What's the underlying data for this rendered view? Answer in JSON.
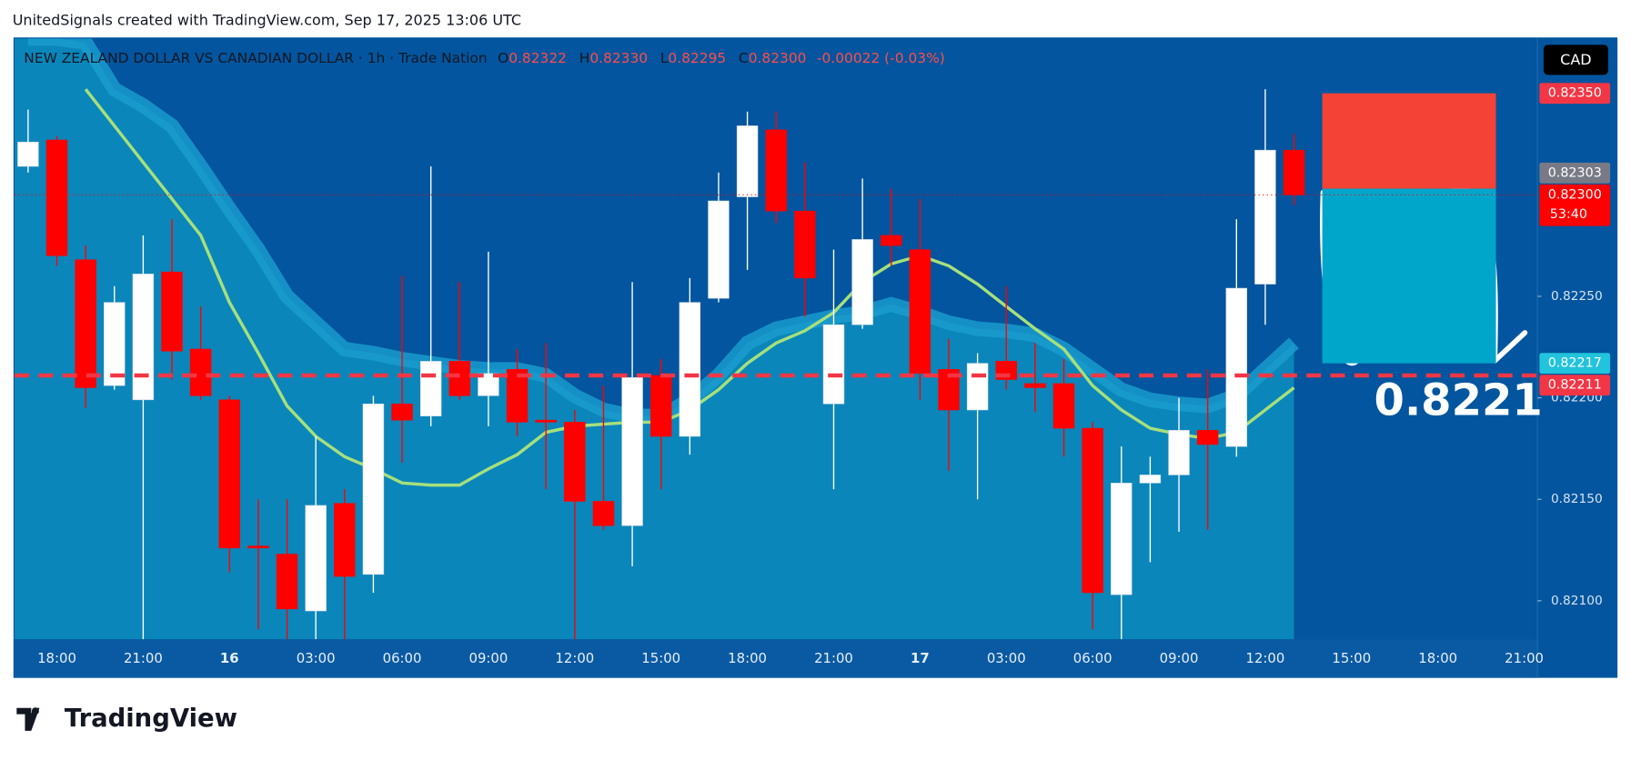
{
  "header": {
    "text": "UnitedSignals created with TradingView.com, Sep 17, 2025 13:06 UTC"
  },
  "chart_data": {
    "type": "candlestick",
    "title": "NEW ZEALAND DOLLAR VS CANADIAN DOLLAR · 1h · Trade Nation",
    "legend": [
      {
        "key": "O",
        "value": "0.82322"
      },
      {
        "key": "H",
        "value": "0.82330"
      },
      {
        "key": "L",
        "value": "0.82295"
      },
      {
        "key": "C",
        "value": "0.82300"
      }
    ],
    "change": "-0.00022 (-0.03%)",
    "currency": "CAD",
    "categories": [
      null,
      "18:00",
      null,
      null,
      "21:00",
      null,
      null,
      "16",
      null,
      null,
      "03:00",
      null,
      null,
      "06:00",
      null,
      null,
      "09:00",
      null,
      null,
      "12:00",
      null,
      null,
      "15:00",
      null,
      null,
      "18:00",
      null,
      null,
      "21:00",
      null,
      null,
      "17",
      null,
      null,
      "03:00",
      null,
      null,
      "06:00",
      null,
      null,
      "09:00",
      null,
      null,
      "12:00",
      null,
      null,
      "15:00",
      null,
      null,
      "18:00",
      null,
      null,
      "21:00"
    ],
    "open": [
      0.82314,
      0.82327,
      0.82268,
      0.82206,
      0.82199,
      0.82262,
      0.82224,
      0.82199,
      0.82127,
      0.82123,
      0.82095,
      0.82148,
      0.82113,
      0.82197,
      0.82191,
      0.82218,
      0.82201,
      0.82214,
      0.82189,
      0.82188,
      0.82149,
      0.82137,
      0.82211,
      0.82181,
      0.82249,
      0.82299,
      0.82332,
      0.82292,
      0.82197,
      0.82236,
      0.8228,
      0.82273,
      0.82214,
      0.82194,
      0.82218,
      0.82207,
      0.82207,
      0.82185,
      0.82103,
      0.82158,
      0.82162,
      0.82184,
      0.82176,
      0.82256,
      0.82322,
      null,
      null,
      null,
      null,
      null,
      null,
      null,
      null
    ],
    "high": [
      0.82342,
      0.82329,
      0.82275,
      0.82255,
      0.8228,
      0.82288,
      0.82245,
      0.82201,
      0.8215,
      0.8215,
      0.82181,
      0.82155,
      0.82201,
      0.8226,
      0.82314,
      0.82257,
      0.82272,
      0.82224,
      0.82227,
      0.82194,
      0.82206,
      0.82257,
      0.82219,
      0.82259,
      0.82311,
      0.82341,
      0.82341,
      0.82316,
      0.82273,
      0.82308,
      0.82303,
      0.82298,
      0.82229,
      0.82222,
      0.82255,
      0.82227,
      0.82219,
      0.82188,
      0.82176,
      0.82171,
      0.822,
      0.82214,
      0.82288,
      0.82352,
      0.8233,
      null,
      null,
      null,
      null,
      null,
      null,
      null,
      null
    ],
    "low": [
      0.82311,
      0.82265,
      0.82195,
      0.82204,
      0.82081,
      0.82209,
      0.82199,
      0.82114,
      0.82086,
      0.82081,
      0.82081,
      0.82081,
      0.82104,
      0.82168,
      0.82186,
      0.82199,
      0.82186,
      0.82181,
      0.82155,
      0.82081,
      0.82135,
      0.82117,
      0.82155,
      0.82172,
      0.82247,
      0.82263,
      0.82286,
      0.8224,
      0.82155,
      0.82234,
      0.82265,
      0.82199,
      0.82164,
      0.8215,
      0.82204,
      0.82193,
      0.82171,
      0.82086,
      0.82081,
      0.82119,
      0.82134,
      0.82135,
      0.82171,
      0.82236,
      0.82295,
      null,
      null,
      null,
      null,
      null,
      null,
      null,
      null
    ],
    "close": [
      0.82326,
      0.8227,
      0.82205,
      0.82247,
      0.82261,
      0.82223,
      0.82201,
      0.82126,
      0.82126,
      0.82096,
      0.82147,
      0.82112,
      0.82197,
      0.82189,
      0.82218,
      0.82201,
      0.82212,
      0.82188,
      0.82188,
      0.82149,
      0.82137,
      0.8221,
      0.82181,
      0.82247,
      0.82297,
      0.82334,
      0.82292,
      0.82259,
      0.82236,
      0.82278,
      0.82275,
      0.82212,
      0.82194,
      0.82217,
      0.82209,
      0.82205,
      0.82185,
      0.82104,
      0.82158,
      0.82162,
      0.82184,
      0.82177,
      0.82254,
      0.82322,
      0.823,
      null,
      null,
      null,
      null,
      null,
      null,
      null,
      null
    ],
    "up_color": "#ffffff",
    "down_color": "#ff0000",
    "overlays": [
      {
        "type": "area",
        "color": "#0a86ba",
        "edge_color": "#1a9fd0",
        "values": [
          0.82377,
          0.82377,
          0.82375,
          0.82352,
          0.82344,
          0.82334,
          0.82314,
          0.82293,
          0.82273,
          0.8225,
          0.82237,
          0.82224,
          0.82222,
          0.82219,
          0.82217,
          0.82215,
          0.82214,
          0.82214,
          0.82211,
          0.82201,
          0.82194,
          0.82191,
          0.82191,
          0.82199,
          0.82211,
          0.82227,
          0.82234,
          0.82237,
          0.8224,
          0.82242,
          0.82246,
          0.82242,
          0.82237,
          0.82234,
          0.82233,
          0.82231,
          0.82224,
          0.82214,
          0.82204,
          0.82199,
          0.82197,
          0.82196,
          0.82201,
          0.82214,
          0.82227,
          null,
          null,
          null,
          null,
          null,
          null,
          null,
          null
        ]
      },
      {
        "type": "line",
        "color": "#a6e07c",
        "values": [
          null,
          null,
          0.82352,
          0.82334,
          0.82316,
          0.82298,
          0.8228,
          0.82247,
          0.82222,
          0.82196,
          0.82181,
          0.82171,
          0.82165,
          0.82158,
          0.82157,
          0.82157,
          0.82165,
          0.82172,
          0.82183,
          0.82186,
          0.82187,
          0.82188,
          0.82188,
          0.82194,
          0.82204,
          0.82217,
          0.82227,
          0.82233,
          0.82242,
          0.82257,
          0.82266,
          0.8227,
          0.82265,
          0.82256,
          0.82245,
          0.82234,
          0.82224,
          0.82206,
          0.82194,
          0.82185,
          0.82182,
          0.8218,
          0.82183,
          0.82194,
          0.82205,
          null,
          null,
          null,
          null,
          null,
          null,
          null,
          null
        ]
      }
    ],
    "ylim": [
      0.82081,
      0.82377
    ],
    "yticks": [
      {
        "value": 0.821,
        "label": "0.82100"
      },
      {
        "value": 0.8215,
        "label": "0.82150"
      },
      {
        "value": 0.822,
        "label": "0.82200"
      },
      {
        "value": 0.8225,
        "label": "0.82250"
      }
    ],
    "price_tags": [
      {
        "value": 0.8235,
        "label": "0.82350",
        "color": "#f23645"
      },
      {
        "value": 0.82303,
        "label": "0.82303",
        "color": "#787b86"
      },
      {
        "value": 0.823,
        "label": "0.82300",
        "countdown": "53:40",
        "color": "#ff0000"
      },
      {
        "value": 0.82217,
        "label": "0.82217",
        "color": "#22c3dc"
      },
      {
        "value": 0.82211,
        "label": "0.82211",
        "color": "#f23645"
      }
    ],
    "stop_color": "#f44336",
    "target_color": "#00a6ca",
    "annotation": "0.8221",
    "grid": false
  },
  "footer": {
    "logo": "TradingView"
  }
}
